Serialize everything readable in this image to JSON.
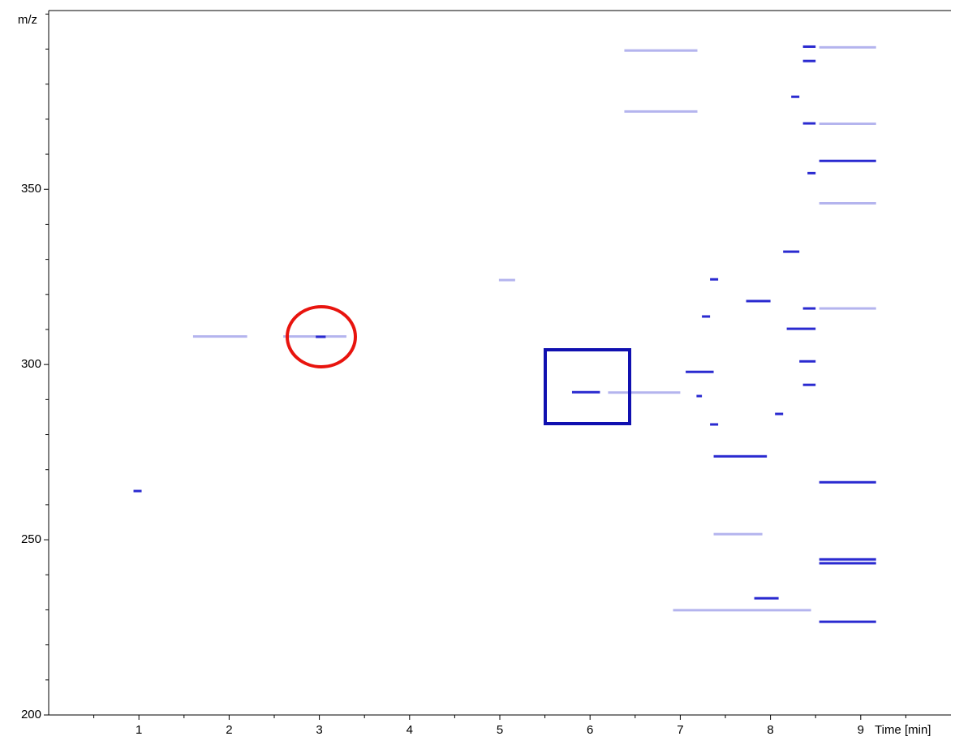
{
  "chart_data": {
    "type": "heatmap",
    "y_label": "m/z",
    "x_label": "Time [min]",
    "xlim": [
      0,
      10
    ],
    "xticks": [
      1,
      2,
      3,
      4,
      5,
      6,
      7,
      8,
      9
    ],
    "xminorticks": [
      0.5,
      1.5,
      2.5,
      3.5,
      4.5,
      5.5,
      6.5,
      7.5,
      8.5,
      9.5
    ],
    "ylim": [
      200,
      401
    ],
    "yticks": [
      200,
      250,
      300,
      350
    ],
    "yminorticks": [
      210,
      220,
      230,
      240,
      260,
      270,
      280,
      290,
      310,
      320,
      330,
      340,
      360,
      370,
      380,
      390,
      400
    ],
    "series": [
      {
        "color": "#2a2ad0",
        "x_start": [
          5.8,
          2.96,
          8.54,
          8.54,
          8.54,
          8.54,
          8.54,
          7.37,
          7.06,
          7.73,
          8.14,
          8.36,
          8.36,
          8.36,
          8.18,
          8.36,
          8.36,
          8.23,
          8.41,
          7.82,
          8.32,
          0.94,
          7.33,
          7.24,
          7.18,
          7.33,
          8.05
        ],
        "x_end": [
          6.11,
          3.07,
          9.17,
          9.17,
          9.17,
          9.17,
          9.17,
          7.96,
          7.37,
          8.0,
          8.32,
          8.5,
          8.5,
          8.5,
          8.5,
          8.5,
          8.5,
          8.32,
          8.5,
          8.09,
          8.5,
          1.03,
          7.42,
          7.33,
          7.24,
          7.42,
          8.14
        ],
        "values": [
          292.1,
          307.9,
          266.4,
          244.4,
          243.3,
          226.6,
          358.1,
          273.8,
          297.9,
          318.1,
          332.2,
          368.8,
          386.6,
          390.7,
          310.2,
          316,
          294.2,
          376.4,
          354.6,
          233.3,
          300.9,
          263.9,
          324.3,
          313.7,
          291,
          282.9,
          285.9
        ]
      },
      {
        "color": "#b4b4ee",
        "x_start": [
          6.38,
          7.37,
          6.92,
          4.99,
          8.54,
          6.38,
          8.54,
          8.54,
          8.54,
          6.2,
          2.6,
          1.6
        ],
        "x_end": [
          7.19,
          7.91,
          8.45,
          5.17,
          9.17,
          7.19,
          9.17,
          9.17,
          9.17,
          7.0,
          3.3,
          2.2
        ],
        "values": [
          389.6,
          251.6,
          229.9,
          324.1,
          390.5,
          372.2,
          368.7,
          346,
          316,
          292,
          308,
          308
        ]
      }
    ]
  }
}
